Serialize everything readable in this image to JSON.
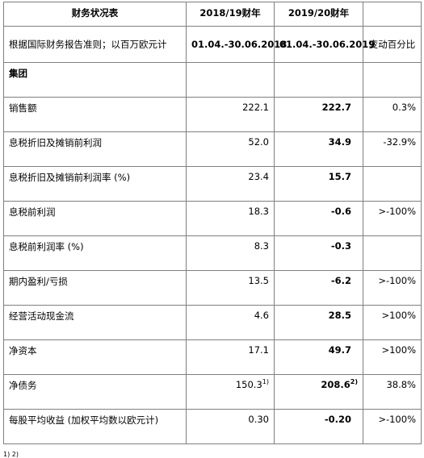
{
  "header": {
    "title": "财务状况表",
    "fy_prior": "2018/19财年",
    "fy_current": "2019/20财年",
    "subtitle": "根据国际财务报告准则；以百万欧元计",
    "period_prior": "01.04.-30.06.2018",
    "period_current": "01.04.-30.06.2019",
    "change_label": "变动百分比"
  },
  "section": {
    "label": "集团"
  },
  "rows": [
    {
      "label": "销售额",
      "prior": "222.1",
      "prior_note": "",
      "current": "222.7",
      "current_note": "",
      "change": "0.3%"
    },
    {
      "label": "息税折旧及摊销前利润",
      "prior": "52.0",
      "prior_note": "",
      "current": "34.9",
      "current_note": "",
      "change": "-32.9%"
    },
    {
      "label": "息税折旧及摊销前利润率 (%)",
      "prior": "23.4",
      "prior_note": "",
      "current": "15.7",
      "current_note": "",
      "change": ""
    },
    {
      "label": "息税前利润",
      "prior": "18.3",
      "prior_note": "",
      "current": "-0.6",
      "current_note": "",
      "change": ">-100%"
    },
    {
      "label": "息税前利润率 (%)",
      "prior": "8.3",
      "prior_note": "",
      "current": "-0.3",
      "current_note": "",
      "change": ""
    },
    {
      "label": "期内盈利/亏损",
      "prior": "13.5",
      "prior_note": "",
      "current": "-6.2",
      "current_note": "",
      "change": ">-100%"
    },
    {
      "label": "经营活动现金流",
      "prior": "4.6",
      "prior_note": "",
      "current": "28.5",
      "current_note": "",
      "change": ">100%"
    },
    {
      "label": "净资本",
      "prior": "17.1",
      "prior_note": "",
      "current": "49.7",
      "current_note": "",
      "change": ">100%"
    },
    {
      "label": "净债务",
      "prior": "150.3",
      "prior_note": "1)",
      "current": "208.6",
      "current_note": "2)",
      "change": "38.8%"
    },
    {
      "label": "每股平均收益 (加权平均数以欧元计)",
      "prior": "0.30",
      "prior_note": "",
      "current": "-0.20",
      "current_note": "",
      "change": ">-100%"
    }
  ],
  "footnote": "1)                    2)"
}
